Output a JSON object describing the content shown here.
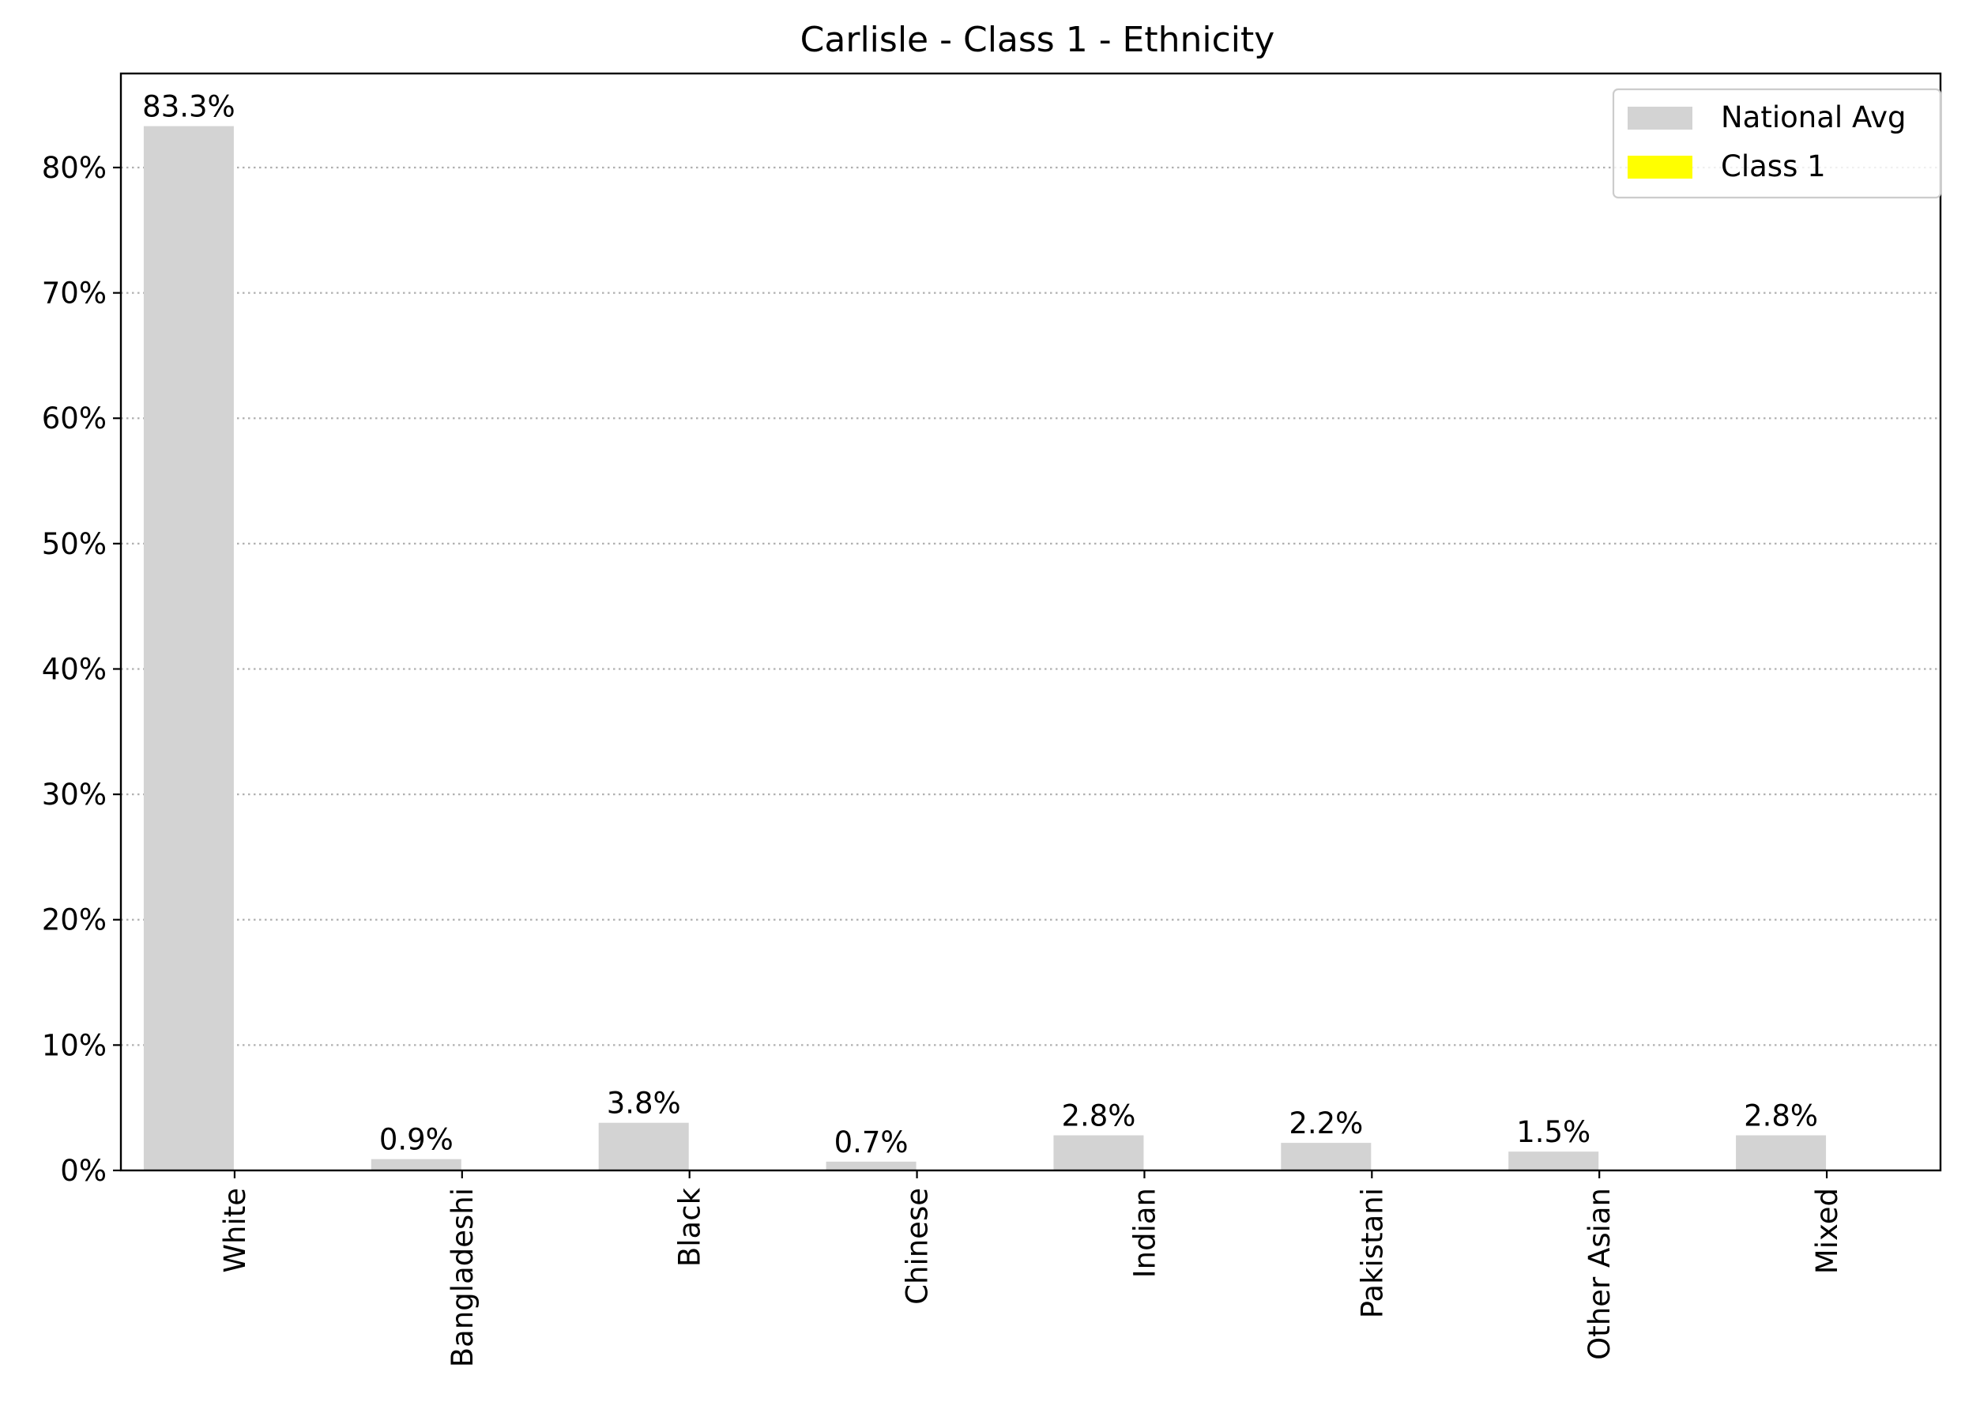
{
  "chart_data": {
    "type": "bar",
    "title": "Carlisle - Class 1 - Ethnicity",
    "xlabel": "",
    "ylabel": "",
    "categories": [
      "White",
      "Bangladeshi",
      "Black",
      "Chinese",
      "Indian",
      "Pakistani",
      "Other Asian",
      "Mixed"
    ],
    "series": [
      {
        "name": "National Avg",
        "color": "#d3d3d3",
        "values": [
          83.3,
          0.9,
          3.8,
          0.7,
          2.8,
          2.2,
          1.5,
          2.8
        ],
        "labels": [
          "83.3%",
          "0.9%",
          "3.8%",
          "0.7%",
          "2.8%",
          "2.2%",
          "1.5%",
          "2.8%"
        ]
      },
      {
        "name": "Class 1",
        "color": "#ffff00",
        "values": [
          0,
          0,
          0,
          0,
          0,
          0,
          0,
          0
        ]
      }
    ],
    "ylim": [
      0,
      87.5
    ],
    "yticks": [
      0,
      10,
      20,
      30,
      40,
      50,
      60,
      70,
      80
    ],
    "ytick_labels": [
      "0%",
      "10%",
      "20%",
      "30%",
      "40%",
      "50%",
      "60%",
      "70%",
      "80%"
    ],
    "grid": "horizontal dotted",
    "legend_position": "top-right"
  }
}
